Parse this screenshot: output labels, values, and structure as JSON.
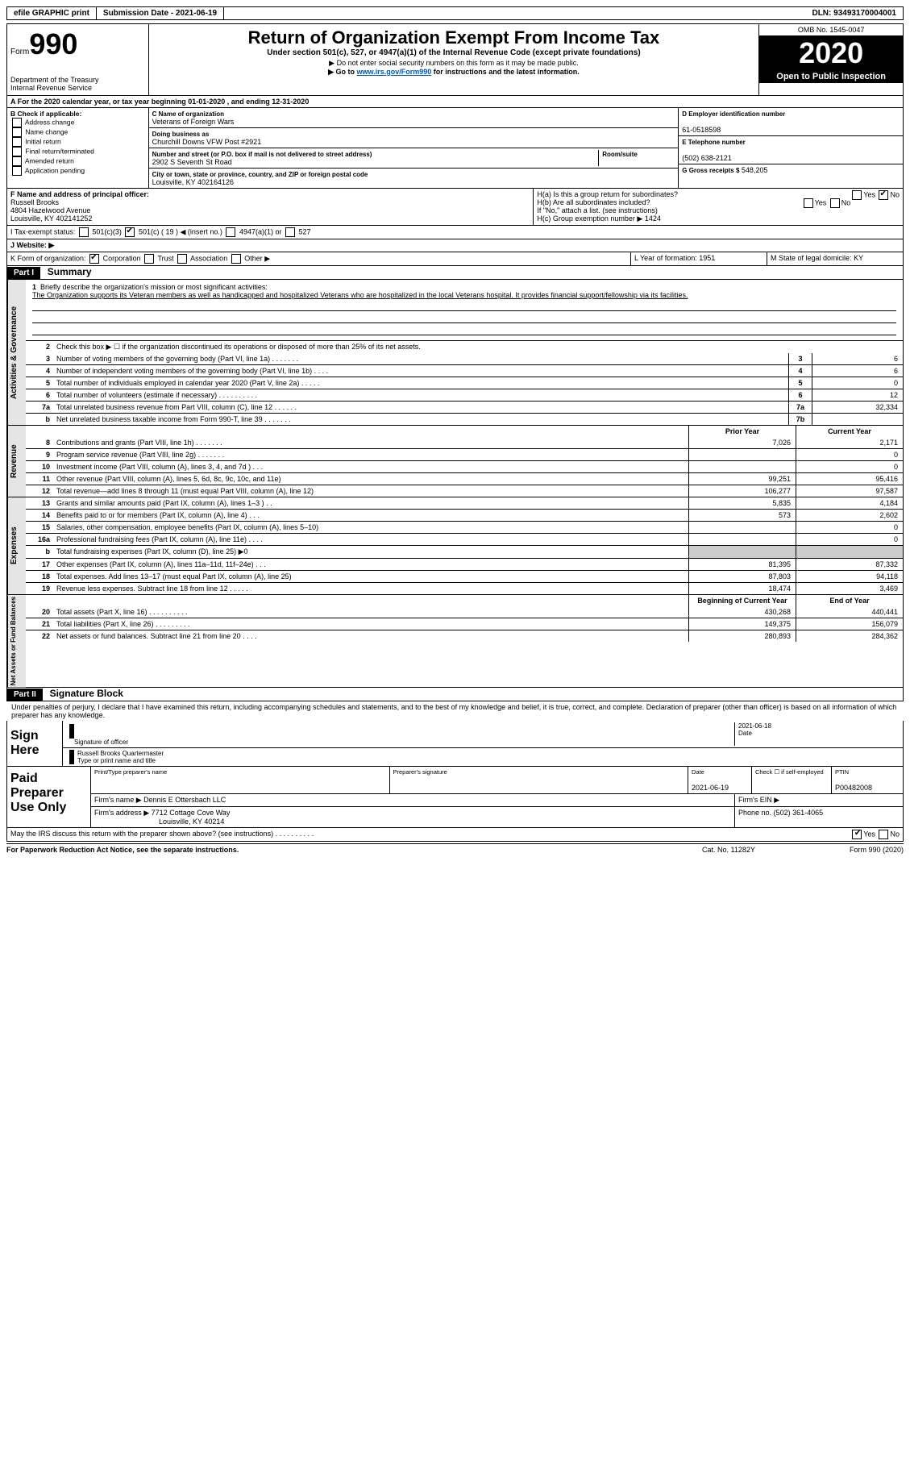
{
  "topbar": {
    "efile": "efile GRAPHIC print",
    "submission": "Submission Date - 2021-06-19",
    "dln": "DLN: 93493170004001"
  },
  "header": {
    "form_word": "Form",
    "form_num": "990",
    "dept": "Department of the Treasury\nInternal Revenue Service",
    "title": "Return of Organization Exempt From Income Tax",
    "subtitle": "Under section 501(c), 527, or 4947(a)(1) of the Internal Revenue Code (except private foundations)",
    "note1": "▶ Do not enter social security numbers on this form as it may be made public.",
    "note2_pre": "▶ Go to ",
    "note2_link": "www.irs.gov/Form990",
    "note2_post": " for instructions and the latest information.",
    "omb": "OMB No. 1545-0047",
    "year": "2020",
    "inspection": "Open to Public Inspection"
  },
  "lineA": "A For the 2020 calendar year, or tax year beginning 01-01-2020   , and ending 12-31-2020",
  "boxB": {
    "title": "B Check if applicable:",
    "opts": [
      "Address change",
      "Name change",
      "Initial return",
      "Final return/terminated",
      "Amended return",
      "Application pending"
    ]
  },
  "boxC": {
    "name_lbl": "C Name of organization",
    "name": "Veterans of Foreign Wars",
    "dba_lbl": "Doing business as",
    "dba": "Churchill Downs VFW Post #2921",
    "addr_lbl": "Number and street (or P.O. box if mail is not delivered to street address)",
    "addr": "2902 S Seventh St Road",
    "room_lbl": "Room/suite",
    "city_lbl": "City or town, state or province, country, and ZIP or foreign postal code",
    "city": "Louisville, KY  402164126"
  },
  "boxD": {
    "lbl": "D Employer identification number",
    "val": "61-0518598"
  },
  "boxE": {
    "lbl": "E Telephone number",
    "val": "(502) 638-2121"
  },
  "boxG": {
    "lbl": "G Gross receipts $",
    "val": "548,205"
  },
  "boxF": {
    "lbl": "F  Name and address of principal officer:",
    "name": "Russell Brooks",
    "addr1": "4804 Hazelwood Avenue",
    "addr2": "Louisville, KY  402141252"
  },
  "boxH": {
    "a": "H(a)  Is this a group return for subordinates?",
    "b": "H(b)  Are all subordinates included?",
    "note": "If \"No,\" attach a list. (see instructions)",
    "c_lbl": "H(c)  Group exemption number ▶",
    "c_val": "1424"
  },
  "boxI": {
    "lbl": "I   Tax-exempt status:",
    "o1": "501(c)(3)",
    "o2": "501(c) ( 19 ) ◀ (insert no.)",
    "o3": "4947(a)(1) or",
    "o4": "527"
  },
  "boxJ": "J   Website: ▶",
  "boxK": {
    "lbl": "K Form of organization:",
    "o1": "Corporation",
    "o2": "Trust",
    "o3": "Association",
    "o4": "Other ▶"
  },
  "boxL": {
    "lbl": "L Year of formation:",
    "val": "1951"
  },
  "boxM": {
    "lbl": "M State of legal domicile:",
    "val": "KY"
  },
  "part1": {
    "tag": "Part I",
    "title": "Summary"
  },
  "mission": {
    "num": "1",
    "lead": "Briefly describe the organization's mission or most significant activities:",
    "text": "The Organization supports its Veteran members as well as handicapped and hospitalized Veterans who are hospitalized in the local Veterans hospital. It provides financial support/fellowship via its facilities."
  },
  "line2": "Check this box ▶ ☐  if the organization discontinued its operations or disposed of more than 25% of its net assets.",
  "gov_lines": [
    {
      "n": "3",
      "t": "Number of voting members of the governing body (Part VI, line 1a)  .    .    .    .    .    .    .",
      "bn": "3",
      "v": "6"
    },
    {
      "n": "4",
      "t": "Number of independent voting members of the governing body (Part VI, line 1b)    .    .    .    .",
      "bn": "4",
      "v": "6"
    },
    {
      "n": "5",
      "t": "Total number of individuals employed in calendar year 2020 (Part V, line 2a)  .    .    .    .    .",
      "bn": "5",
      "v": "0"
    },
    {
      "n": "6",
      "t": "Total number of volunteers (estimate if necessary)   .    .    .    .    .    .    .    .    .    .",
      "bn": "6",
      "v": "12"
    },
    {
      "n": "7a",
      "t": "Total unrelated business revenue from Part VIII, column (C), line 12   .    .    .    .    .    .",
      "bn": "7a",
      "v": "32,334"
    },
    {
      "n": "b",
      "t": "Net unrelated business taxable income from Form 990-T, line 39   .    .    .    .    .    .    .",
      "bn": "7b",
      "v": ""
    }
  ],
  "col_headers": {
    "prior": "Prior Year",
    "current": "Current Year"
  },
  "rev_lines": [
    {
      "n": "8",
      "t": "Contributions and grants (Part VIII, line 1h)   .    .    .    .    .    .    .",
      "p": "7,026",
      "c": "2,171"
    },
    {
      "n": "9",
      "t": "Program service revenue (Part VIII, line 2g)   .    .    .    .    .    .    .",
      "p": "",
      "c": "0"
    },
    {
      "n": "10",
      "t": "Investment income (Part VIII, column (A), lines 3, 4, and 7d )   .    .    .",
      "p": "",
      "c": "0"
    },
    {
      "n": "11",
      "t": "Other revenue (Part VIII, column (A), lines 5, 6d, 8c, 9c, 10c, and 11e)",
      "p": "99,251",
      "c": "95,416"
    },
    {
      "n": "12",
      "t": "Total revenue—add lines 8 through 11 (must equal Part VIII, column (A), line 12)",
      "p": "106,277",
      "c": "97,587"
    }
  ],
  "exp_lines": [
    {
      "n": "13",
      "t": "Grants and similar amounts paid (Part IX, column (A), lines 1–3 )   .    .",
      "p": "5,835",
      "c": "4,184"
    },
    {
      "n": "14",
      "t": "Benefits paid to or for members (Part IX, column (A), line 4)   .    .    .",
      "p": "573",
      "c": "2,602"
    },
    {
      "n": "15",
      "t": "Salaries, other compensation, employee benefits (Part IX, column (A), lines 5–10)",
      "p": "",
      "c": "0"
    },
    {
      "n": "16a",
      "t": "Professional fundraising fees (Part IX, column (A), line 11e)   .    .    .    .",
      "p": "",
      "c": "0"
    },
    {
      "n": "b",
      "t": "Total fundraising expenses (Part IX, column (D), line 25) ▶0",
      "p": "GREY",
      "c": "GREY"
    },
    {
      "n": "17",
      "t": "Other expenses (Part IX, column (A), lines 11a–11d, 11f–24e)   .    .    .",
      "p": "81,395",
      "c": "87,332"
    },
    {
      "n": "18",
      "t": "Total expenses. Add lines 13–17 (must equal Part IX, column (A), line 25)",
      "p": "87,803",
      "c": "94,118"
    },
    {
      "n": "19",
      "t": "Revenue less expenses. Subtract line 18 from line 12  .    .    .    .    .",
      "p": "18,474",
      "c": "3,469"
    }
  ],
  "na_headers": {
    "b": "Beginning of Current Year",
    "e": "End of Year"
  },
  "na_lines": [
    {
      "n": "20",
      "t": "Total assets (Part X, line 16)   .    .    .    .    .    .    .    .    .    .",
      "p": "430,268",
      "c": "440,441"
    },
    {
      "n": "21",
      "t": "Total liabilities (Part X, line 26)  .    .    .    .    .    .    .    .    .",
      "p": "149,375",
      "c": "156,079"
    },
    {
      "n": "22",
      "t": "Net assets or fund balances. Subtract line 21 from line 20  .    .    .    .",
      "p": "280,893",
      "c": "284,362"
    }
  ],
  "part2": {
    "tag": "Part II",
    "title": "Signature Block"
  },
  "sig": {
    "penalties": "Under penalties of perjury, I declare that I have examined this return, including accompanying schedules and statements, and to the best of my knowledge and belief, it is true, correct, and complete. Declaration of preparer (other than officer) is based on all information of which preparer has any knowledge.",
    "sign_here": "Sign Here",
    "sig_officer": "Signature of officer",
    "date": "Date",
    "date_val": "2021-06-18",
    "name": "Russell Brooks  Quartermaster",
    "name_lbl": "Type or print name and title"
  },
  "prep": {
    "side": "Paid Preparer Use Only",
    "name_lbl": "Print/Type preparer's name",
    "sig_lbl": "Preparer's signature",
    "date_lbl": "Date",
    "date_val": "2021-06-19",
    "check_lbl": "Check ☐  if self-employed",
    "ptin_lbl": "PTIN",
    "ptin": "P00482008",
    "firm_name_lbl": "Firm's name    ▶",
    "firm_name": "Dennis E Ottersbach LLC",
    "firm_ein_lbl": "Firm's EIN ▶",
    "firm_addr_lbl": "Firm's address ▶",
    "firm_addr1": "7712 Cottage Cove Way",
    "firm_addr2": "Louisville, KY  40214",
    "phone_lbl": "Phone no.",
    "phone": "(502) 361-4065"
  },
  "discuss": "May the IRS discuss this return with the preparer shown above? (see instructions)   .    .    .    .    .    .    .    .    .    .",
  "footer": {
    "l": "For Paperwork Reduction Act Notice, see the separate instructions.",
    "m": "Cat. No. 11282Y",
    "r": "Form 990 (2020)"
  },
  "sidetabs": {
    "gov": "Activities & Governance",
    "rev": "Revenue",
    "exp": "Expenses",
    "na": "Net Assets or Fund Balances"
  }
}
